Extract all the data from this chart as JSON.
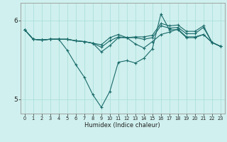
{
  "xlabel": "Humidex (Indice chaleur)",
  "bg_color": "#cff0ee",
  "grid_color": "#a8ddd8",
  "line_color": "#1a6b6b",
  "x_min": -0.5,
  "x_max": 23.5,
  "y_min": 4.82,
  "y_max": 6.22,
  "yticks": [
    5,
    6
  ],
  "xticks": [
    0,
    1,
    2,
    3,
    4,
    5,
    6,
    7,
    8,
    9,
    10,
    11,
    12,
    13,
    14,
    15,
    16,
    17,
    18,
    19,
    20,
    21,
    22,
    23
  ],
  "series": [
    [
      5.88,
      5.76,
      5.75,
      5.76,
      5.76,
      5.62,
      5.44,
      5.28,
      5.06,
      4.9,
      5.1,
      5.47,
      5.49,
      5.46,
      5.52,
      5.64,
      6.08,
      5.88,
      5.88,
      5.78,
      5.78,
      5.82,
      5.72,
      5.67
    ],
    [
      5.88,
      5.76,
      5.75,
      5.76,
      5.76,
      5.76,
      5.74,
      5.73,
      5.71,
      5.6,
      5.68,
      5.78,
      5.78,
      5.7,
      5.65,
      5.73,
      5.82,
      5.85,
      5.89,
      5.79,
      5.79,
      5.82,
      5.72,
      5.67
    ],
    [
      5.88,
      5.76,
      5.75,
      5.76,
      5.76,
      5.76,
      5.74,
      5.73,
      5.71,
      5.66,
      5.74,
      5.79,
      5.78,
      5.78,
      5.76,
      5.78,
      5.93,
      5.9,
      5.91,
      5.83,
      5.83,
      5.91,
      5.72,
      5.67
    ],
    [
      5.88,
      5.76,
      5.75,
      5.76,
      5.76,
      5.76,
      5.74,
      5.73,
      5.71,
      5.69,
      5.78,
      5.82,
      5.78,
      5.79,
      5.79,
      5.81,
      5.96,
      5.93,
      5.94,
      5.86,
      5.86,
      5.93,
      5.72,
      5.67
    ]
  ]
}
